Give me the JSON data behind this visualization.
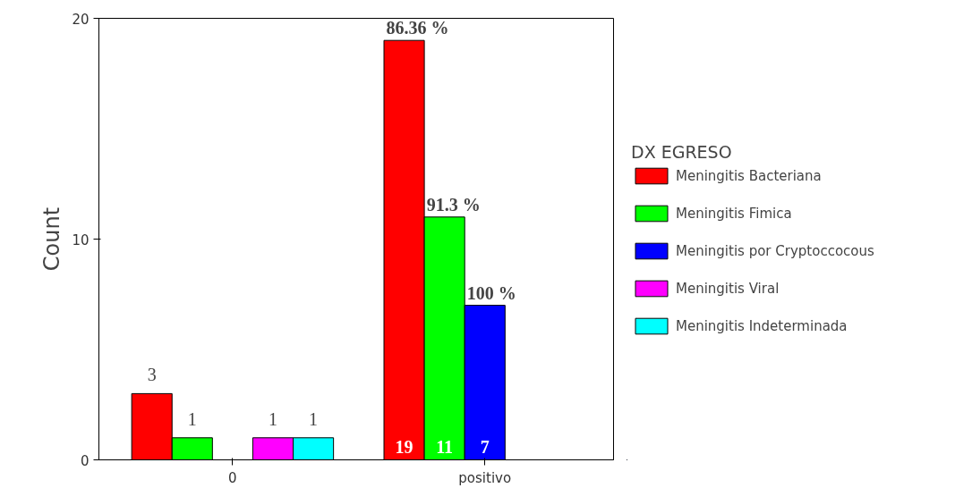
{
  "chart_data": {
    "type": "bar",
    "categories": [
      "0",
      "positivo"
    ],
    "ylabel": "Count",
    "legend_title": "DX EGRESO",
    "legend": "right",
    "ylim": [
      0,
      20
    ],
    "yticks": [
      0,
      10,
      20
    ],
    "series": [
      {
        "name": "Meningitis Bacteriana",
        "color": "#ff0000",
        "values": [
          3,
          19
        ],
        "value_labels": [
          "3",
          "19"
        ]
      },
      {
        "name": "Meningitis Fimica",
        "color": "#00ff00",
        "values": [
          1,
          11
        ],
        "value_labels": [
          "1",
          "11"
        ]
      },
      {
        "name": "Meningitis por Cryptoccocous",
        "color": "#0000ff",
        "values": [
          null,
          7
        ],
        "value_labels": [
          null,
          "7"
        ]
      },
      {
        "name": "Meningitis Viral",
        "color": "#ff00ff",
        "values": [
          1,
          null
        ],
        "value_labels": [
          "1",
          null
        ]
      },
      {
        "name": "Meningitis Indeterminada",
        "color": "#00ffff",
        "values": [
          1,
          null
        ],
        "value_labels": [
          "1",
          null
        ]
      }
    ],
    "annotations": [
      "86.36 %",
      "91.3 %",
      "100 %"
    ]
  }
}
